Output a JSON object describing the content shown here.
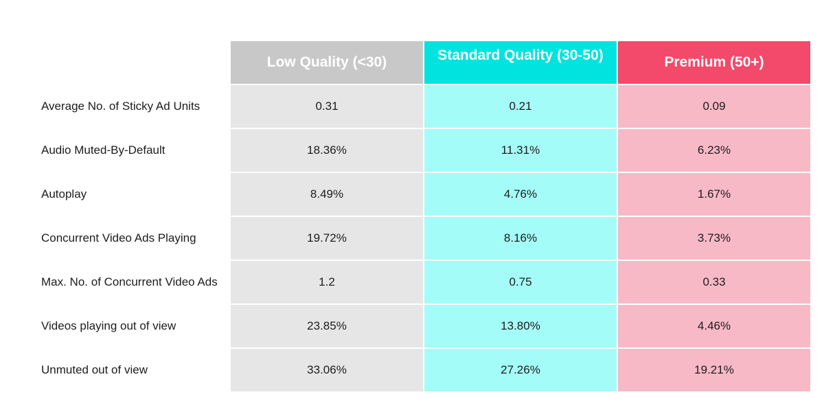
{
  "chart_data": {
    "type": "table",
    "columns": [
      "Low Quality (<30)",
      "Standard Quality (30-50)",
      "Premium (50+)"
    ],
    "column_colors": [
      "#c8c8c8",
      "#00e3de",
      "#f3496a"
    ],
    "cell_colors": [
      "#e6e6e6",
      "#a4fcf8",
      "#f8b9c6"
    ],
    "rows": [
      {
        "label": "Average No. of Sticky Ad Units",
        "values": [
          "0.31",
          "0.21",
          "0.09"
        ]
      },
      {
        "label": "Audio Muted-By-Default",
        "values": [
          "18.36%",
          "11.31%",
          "6.23%"
        ]
      },
      {
        "label": "Autoplay",
        "values": [
          "8.49%",
          "4.76%",
          "1.67%"
        ]
      },
      {
        "label": "Concurrent Video Ads Playing",
        "values": [
          "19.72%",
          "8.16%",
          "3.73%"
        ]
      },
      {
        "label": "Max. No. of Concurrent Video Ads",
        "values": [
          "1.2",
          "0.75",
          "0.33"
        ]
      },
      {
        "label": "Videos playing out of view",
        "values": [
          "23.85%",
          "13.80%",
          "4.46%"
        ]
      },
      {
        "label": "Unmuted out of view",
        "values": [
          "33.06%",
          "27.26%",
          "19.21%"
        ]
      }
    ]
  }
}
